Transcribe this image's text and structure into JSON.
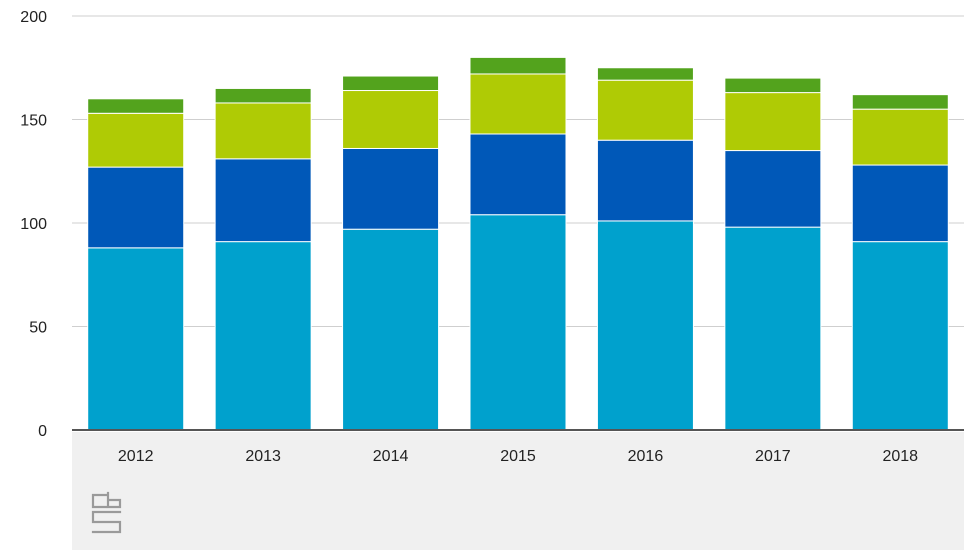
{
  "chart_data": {
    "type": "bar",
    "stacked": true,
    "categories": [
      "2012",
      "2013",
      "2014",
      "2015",
      "2016",
      "2017",
      "2018"
    ],
    "series": [
      {
        "color": "#00a1cd",
        "values": [
          88,
          91,
          97,
          104,
          101,
          98,
          91
        ]
      },
      {
        "color": "#0058b8",
        "values": [
          39,
          40,
          39,
          39,
          39,
          37,
          37
        ]
      },
      {
        "color": "#afcb05",
        "values": [
          26,
          27,
          28,
          29,
          29,
          28,
          27
        ]
      },
      {
        "color": "#53a31d",
        "values": [
          7,
          7,
          7,
          8,
          6,
          7,
          7
        ]
      }
    ],
    "yticks": [
      0,
      50,
      100,
      150,
      200
    ],
    "ylim": [
      0,
      200
    ],
    "grid": true,
    "legend": "none",
    "title": "",
    "xlabel": "",
    "ylabel": ""
  },
  "footer": {
    "background": "#f0f0f0",
    "logo_icon": "cbs-logo-icon"
  }
}
